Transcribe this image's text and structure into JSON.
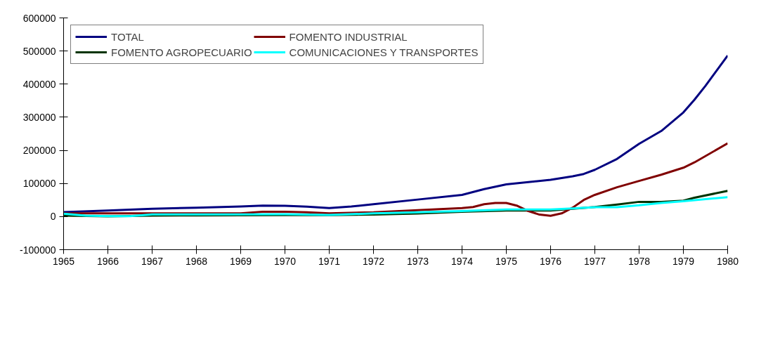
{
  "chart_data": {
    "type": "line",
    "ylim": [
      -100000,
      600000
    ],
    "yticks": [
      -100000,
      0,
      100000,
      200000,
      300000,
      400000,
      500000,
      600000
    ],
    "xlim": [
      1965,
      1980
    ],
    "xticks": [
      1965,
      1966,
      1967,
      1968,
      1969,
      1970,
      1971,
      1972,
      1973,
      1974,
      1975,
      1976,
      1977,
      1978,
      1979,
      1980
    ],
    "grid": false,
    "legend": "top left",
    "marker": "none",
    "line_style": "solid",
    "series": [
      {
        "name": "TOTAL",
        "color": "#000080",
        "x": [
          1965,
          1966,
          1967,
          1968,
          1969,
          1969.5,
          1970,
          1970.5,
          1971,
          1971.5,
          1972,
          1973,
          1974,
          1974.5,
          1975,
          1976,
          1976.5,
          1976.75,
          1977,
          1977.5,
          1978,
          1978.5,
          1978.75,
          1979,
          1979.25,
          1979.5,
          1979.75,
          1980
        ],
        "values": [
          13600,
          18300,
          23800,
          27000,
          30500,
          33000,
          32500,
          30000,
          25800,
          30500,
          37200,
          51400,
          65500,
          83000,
          97200,
          111000,
          121600,
          128700,
          141300,
          174000,
          219800,
          258400,
          286400,
          314500,
          353000,
          395000,
          440600,
          486000
        ]
      },
      {
        "name": "FOMENTO AGROPECUARIO",
        "color": "#003300",
        "x": [
          1965,
          1966,
          1967,
          1968,
          1969,
          1970,
          1971,
          1972,
          1973,
          1974,
          1975,
          1976,
          1976.5,
          1977,
          1977.5,
          1978,
          1978.5,
          1979,
          1979.25,
          1980
        ],
        "values": [
          3000,
          1000,
          3000,
          3500,
          4000,
          4500,
          4500,
          6100,
          9500,
          14400,
          18500,
          18500,
          23600,
          29100,
          36200,
          44500,
          44500,
          48000,
          57100,
          77500
        ]
      },
      {
        "name": "FOMENTO INDUSTRIAL",
        "color": "#800000",
        "x": [
          1965,
          1966,
          1967,
          1968,
          1969,
          1969.5,
          1970,
          1970.5,
          1971,
          1972,
          1973,
          1974,
          1974.25,
          1974.5,
          1974.75,
          1975,
          1975.25,
          1975.5,
          1975.75,
          1976,
          1976.25,
          1976.5,
          1976.75,
          1977,
          1977.5,
          1978,
          1978.5,
          1979,
          1979.25,
          1980
        ],
        "values": [
          10000,
          10000,
          10000,
          10000,
          10000,
          14800,
          14800,
          13000,
          10000,
          13000,
          19300,
          25600,
          29000,
          37400,
          41000,
          41000,
          32500,
          16500,
          5900,
          2400,
          9600,
          27000,
          50200,
          65500,
          88600,
          107500,
          126500,
          147600,
          163700,
          221200
        ]
      },
      {
        "name": "COMUNICACIONES Y TRANSPORTES",
        "color": "#00ffff",
        "x": [
          1965,
          1965.5,
          1966,
          1966.5,
          1967,
          1968,
          1969,
          1970,
          1971,
          1972,
          1973,
          1974,
          1975,
          1976,
          1976.5,
          1977,
          1977.5,
          1978,
          1978.5,
          1979,
          1980
        ],
        "values": [
          8700,
          3000,
          1400,
          1400,
          6700,
          6700,
          6700,
          7000,
          5000,
          9600,
          13000,
          16500,
          21300,
          21300,
          24800,
          28500,
          28500,
          34000,
          41000,
          46500,
          58500
        ]
      }
    ]
  }
}
